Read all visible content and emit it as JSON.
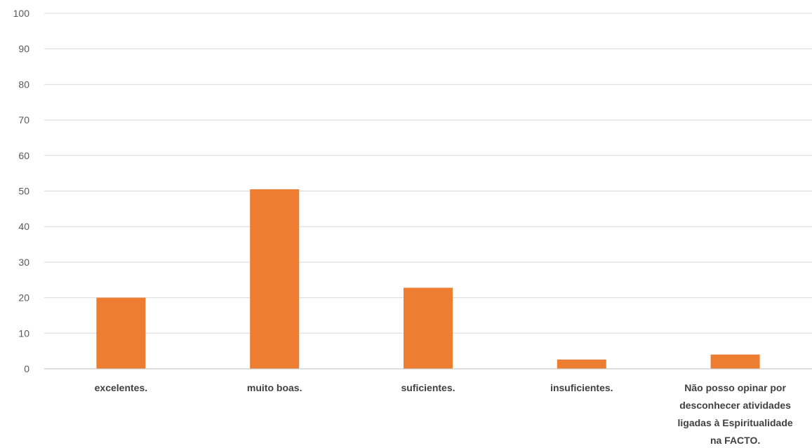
{
  "chart_data": {
    "type": "bar",
    "categories": [
      "excelentes.",
      "muito boas.",
      "suficientes.",
      "insuficientes.",
      "Não posso opinar por desconhecer atividades ligadas à Espiritualidade na FACTO."
    ],
    "category_lines": [
      [
        "excelentes."
      ],
      [
        "muito boas."
      ],
      [
        "suficientes."
      ],
      [
        "insuficientes."
      ],
      [
        "Não posso opinar por",
        "desconhecer atividades",
        "ligadas à Espiritualidade",
        "na FACTO."
      ]
    ],
    "values": [
      20,
      50.5,
      22.8,
      2.6,
      4
    ],
    "ylim": [
      0,
      100
    ],
    "yticks": [
      "0",
      "10",
      "20",
      "30",
      "40",
      "50",
      "60",
      "70",
      "80",
      "90",
      "100"
    ],
    "grid": true,
    "legend": "none",
    "colors": {
      "bar": "#ED7D31",
      "grid": "#D9D9D9",
      "axis": "#BFBFBF",
      "text": "#595959"
    }
  }
}
